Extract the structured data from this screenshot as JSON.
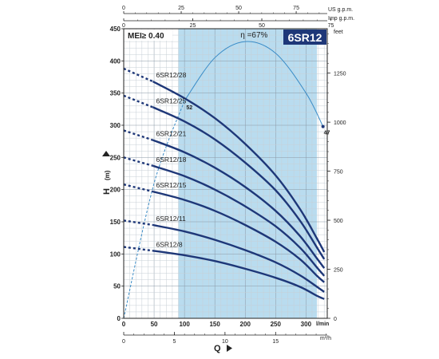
{
  "chart_data": {
    "type": "line",
    "badge": "6SR12",
    "mei": "MEI≥ 0.40",
    "ylabel": "H",
    "ylabel_unit": "(m)",
    "xlabel": "Q",
    "xlim": [
      0,
      335
    ],
    "ylim": [
      0,
      450
    ],
    "x_ticks": [
      0,
      50,
      100,
      150,
      200,
      250,
      300
    ],
    "y_ticks": [
      0,
      50,
      100,
      150,
      200,
      250,
      300,
      350,
      400,
      450
    ],
    "x_unit": "l/min",
    "top_axes": [
      {
        "name": "us",
        "unit": "US g.p.m.",
        "factor": 3.785,
        "ticks": [
          0,
          25,
          50,
          75
        ]
      },
      {
        "name": "imp",
        "unit": "Imp g.p.m.",
        "factor": 4.546,
        "ticks": [
          0,
          25,
          50,
          75
        ]
      }
    ],
    "bottom_axis": {
      "unit": "m³/h",
      "factor": 16.667,
      "ticks": [
        0,
        5,
        10,
        15
      ]
    },
    "right_axis": {
      "unit": "feet",
      "factor": 0.3048,
      "ticks": [
        0,
        250,
        500,
        750,
        1000,
        1250
      ]
    },
    "efficiency": {
      "label": "η =67%",
      "start_label": "52",
      "end_label": "47",
      "points": [
        [
          0,
          0
        ],
        [
          50,
          210
        ],
        [
          100,
          338
        ],
        [
          150,
          405
        ],
        [
          200,
          430
        ],
        [
          250,
          412
        ],
        [
          300,
          350
        ],
        [
          328,
          298
        ]
      ]
    },
    "shaded_range": [
      90,
      318
    ],
    "series": [
      {
        "name": "6SR12/28",
        "dashed": [
          [
            0,
            388
          ],
          [
            48,
            368
          ]
        ],
        "solid": [
          [
            48,
            368
          ],
          [
            100,
            342
          ],
          [
            150,
            311
          ],
          [
            200,
            271
          ],
          [
            250,
            222
          ],
          [
            290,
            170
          ],
          [
            318,
            124
          ],
          [
            330,
            103
          ]
        ]
      },
      {
        "name": "6SR12/25",
        "dashed": [
          [
            0,
            346
          ],
          [
            48,
            328
          ]
        ],
        "solid": [
          [
            48,
            328
          ],
          [
            100,
            306
          ],
          [
            150,
            278
          ],
          [
            200,
            242
          ],
          [
            250,
            199
          ],
          [
            290,
            152
          ],
          [
            318,
            110
          ],
          [
            330,
            92
          ]
        ]
      },
      {
        "name": "6SR12/21",
        "dashed": [
          [
            0,
            292
          ],
          [
            48,
            277
          ]
        ],
        "solid": [
          [
            48,
            277
          ],
          [
            100,
            258
          ],
          [
            150,
            234
          ],
          [
            200,
            204
          ],
          [
            250,
            167
          ],
          [
            290,
            128
          ],
          [
            318,
            93
          ],
          [
            330,
            78
          ]
        ]
      },
      {
        "name": "6SR12/18",
        "dashed": [
          [
            0,
            250
          ],
          [
            48,
            237
          ]
        ],
        "solid": [
          [
            48,
            237
          ],
          [
            100,
            221
          ],
          [
            150,
            200
          ],
          [
            200,
            174
          ],
          [
            250,
            143
          ],
          [
            290,
            110
          ],
          [
            318,
            79
          ],
          [
            330,
            66
          ]
        ]
      },
      {
        "name": "6SR12/15",
        "dashed": [
          [
            0,
            208
          ],
          [
            48,
            197
          ]
        ],
        "solid": [
          [
            48,
            197
          ],
          [
            100,
            184
          ],
          [
            150,
            167
          ],
          [
            200,
            145
          ],
          [
            250,
            119
          ],
          [
            290,
            92
          ],
          [
            318,
            66
          ],
          [
            330,
            56
          ]
        ]
      },
      {
        "name": "6SR12/11",
        "dashed": [
          [
            0,
            152
          ],
          [
            48,
            145
          ]
        ],
        "solid": [
          [
            48,
            145
          ],
          [
            100,
            135
          ],
          [
            150,
            122
          ],
          [
            200,
            106
          ],
          [
            250,
            87
          ],
          [
            290,
            67
          ],
          [
            318,
            49
          ],
          [
            330,
            41
          ]
        ]
      },
      {
        "name": "6SR12/8",
        "dashed": [
          [
            0,
            111
          ],
          [
            48,
            105
          ]
        ],
        "solid": [
          [
            48,
            105
          ],
          [
            100,
            98
          ],
          [
            150,
            89
          ],
          [
            200,
            77
          ],
          [
            250,
            63
          ],
          [
            290,
            49
          ],
          [
            318,
            35
          ],
          [
            330,
            30
          ]
        ]
      }
    ]
  }
}
